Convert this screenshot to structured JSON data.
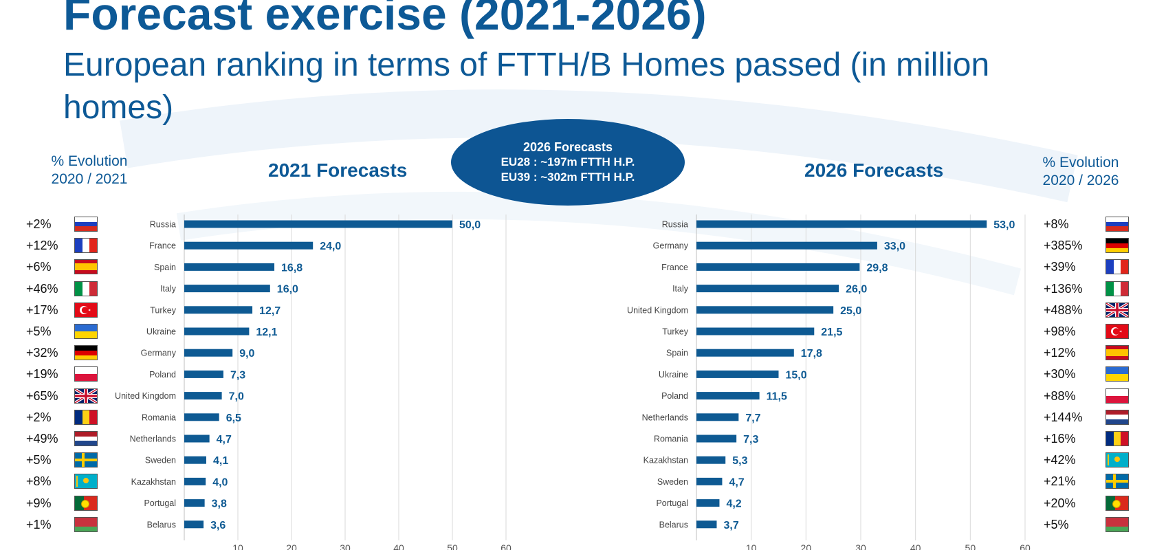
{
  "title": "Forecast exercise (2021-2026)",
  "subtitle": "European ranking in terms of FTTH/B Homes passed (in million homes)",
  "evolution_header_left": [
    "% Evolution",
    "2020 / 2021"
  ],
  "evolution_header_right": [
    "% Evolution",
    "2020 / 2026"
  ],
  "callout": {
    "title": "2026 Forecasts",
    "line1": "EU28 : ~197m FTTH H.P.",
    "line2": "EU39 : ~302m FTTH H.P."
  },
  "chart_data": [
    {
      "type": "bar",
      "orientation": "horizontal",
      "title": "2021 Forecasts",
      "categories": [
        "Russia",
        "France",
        "Spain",
        "Italy",
        "Turkey",
        "Ukraine",
        "Germany",
        "Poland",
        "United Kingdom",
        "Romania",
        "Netherlands",
        "Sweden",
        "Kazakhstan",
        "Portugal",
        "Belarus"
      ],
      "values": [
        50.0,
        24.0,
        16.8,
        16.0,
        12.7,
        12.1,
        9.0,
        7.3,
        7.0,
        6.5,
        4.7,
        4.1,
        4.0,
        3.8,
        3.6
      ],
      "value_labels": [
        "50,0",
        "24,0",
        "16,8",
        "16,0",
        "12,7",
        "12,1",
        "9,0",
        "7,3",
        "7,0",
        "6,5",
        "4,7",
        "4,1",
        "4,0",
        "3,8",
        "3,6"
      ],
      "evolution_2020_2021": [
        "+2%",
        "+12%",
        "+6%",
        "+46%",
        "+17%",
        "+5%",
        "+32%",
        "+19%",
        "+65%",
        "+2%",
        "+49%",
        "+5%",
        "+8%",
        "+9%",
        "+1%"
      ],
      "xlim": [
        0,
        60
      ],
      "xticks": [
        "10",
        "20",
        "30",
        "40",
        "50",
        "60"
      ],
      "grid": true,
      "color": "#0e5a93"
    },
    {
      "type": "bar",
      "orientation": "horizontal",
      "title": "2026 Forecasts",
      "categories": [
        "Russia",
        "Germany",
        "France",
        "Italy",
        "United Kingdom",
        "Turkey",
        "Spain",
        "Ukraine",
        "Poland",
        "Netherlands",
        "Romania",
        "Kazakhstan",
        "Sweden",
        "Portugal",
        "Belarus"
      ],
      "values": [
        53.0,
        33.0,
        29.8,
        26.0,
        25.0,
        21.5,
        17.8,
        15.0,
        11.5,
        7.7,
        7.3,
        5.3,
        4.7,
        4.2,
        3.7
      ],
      "value_labels": [
        "53,0",
        "33,0",
        "29,8",
        "26,0",
        "25,0",
        "21,5",
        "17,8",
        "15,0",
        "11,5",
        "7,7",
        "7,3",
        "5,3",
        "4,7",
        "4,2",
        "3,7"
      ],
      "evolution_2020_2026": [
        "+8%",
        "+385%",
        "+39%",
        "+136%",
        "+488%",
        "+98%",
        "+12%",
        "+30%",
        "+88%",
        "+144%",
        "+16%",
        "+42%",
        "+21%",
        "+20%",
        "+5%"
      ],
      "xlim": [
        0,
        60
      ],
      "xticks": [
        "10",
        "20",
        "30",
        "40",
        "50",
        "60"
      ],
      "grid": true,
      "color": "#0e5a93"
    }
  ],
  "flags": {
    "Russia": [
      "#ffffff",
      "#1c3fbf",
      "#d52b1e"
    ],
    "France": [
      "#1c3fbf",
      "#ffffff",
      "#e1251b"
    ],
    "Spain": [
      "#c60b1e",
      "#ffc400",
      "#c60b1e"
    ],
    "Italy": [
      "#009246",
      "#ffffff",
      "#ce2b37"
    ],
    "Turkey": [
      "#e30a17"
    ],
    "Ukraine": [
      "#2a6bd1",
      "#ffd500"
    ],
    "Germany": [
      "#000000",
      "#dd0000",
      "#ffce00"
    ],
    "Poland": [
      "#ffffff",
      "#dc143c"
    ],
    "United Kingdom": [
      "#012169",
      "#ffffff",
      "#c8102e"
    ],
    "Romania": [
      "#002b7f",
      "#fcd116",
      "#ce1126"
    ],
    "Netherlands": [
      "#ae1c28",
      "#ffffff",
      "#21468b"
    ],
    "Sweden": [
      "#006aa7",
      "#fecc00"
    ],
    "Kazakhstan": [
      "#00afca",
      "#fec50c"
    ],
    "Portugal": [
      "#046a38",
      "#da291c"
    ],
    "Belarus": [
      "#c8313e",
      "#4aa657"
    ]
  }
}
